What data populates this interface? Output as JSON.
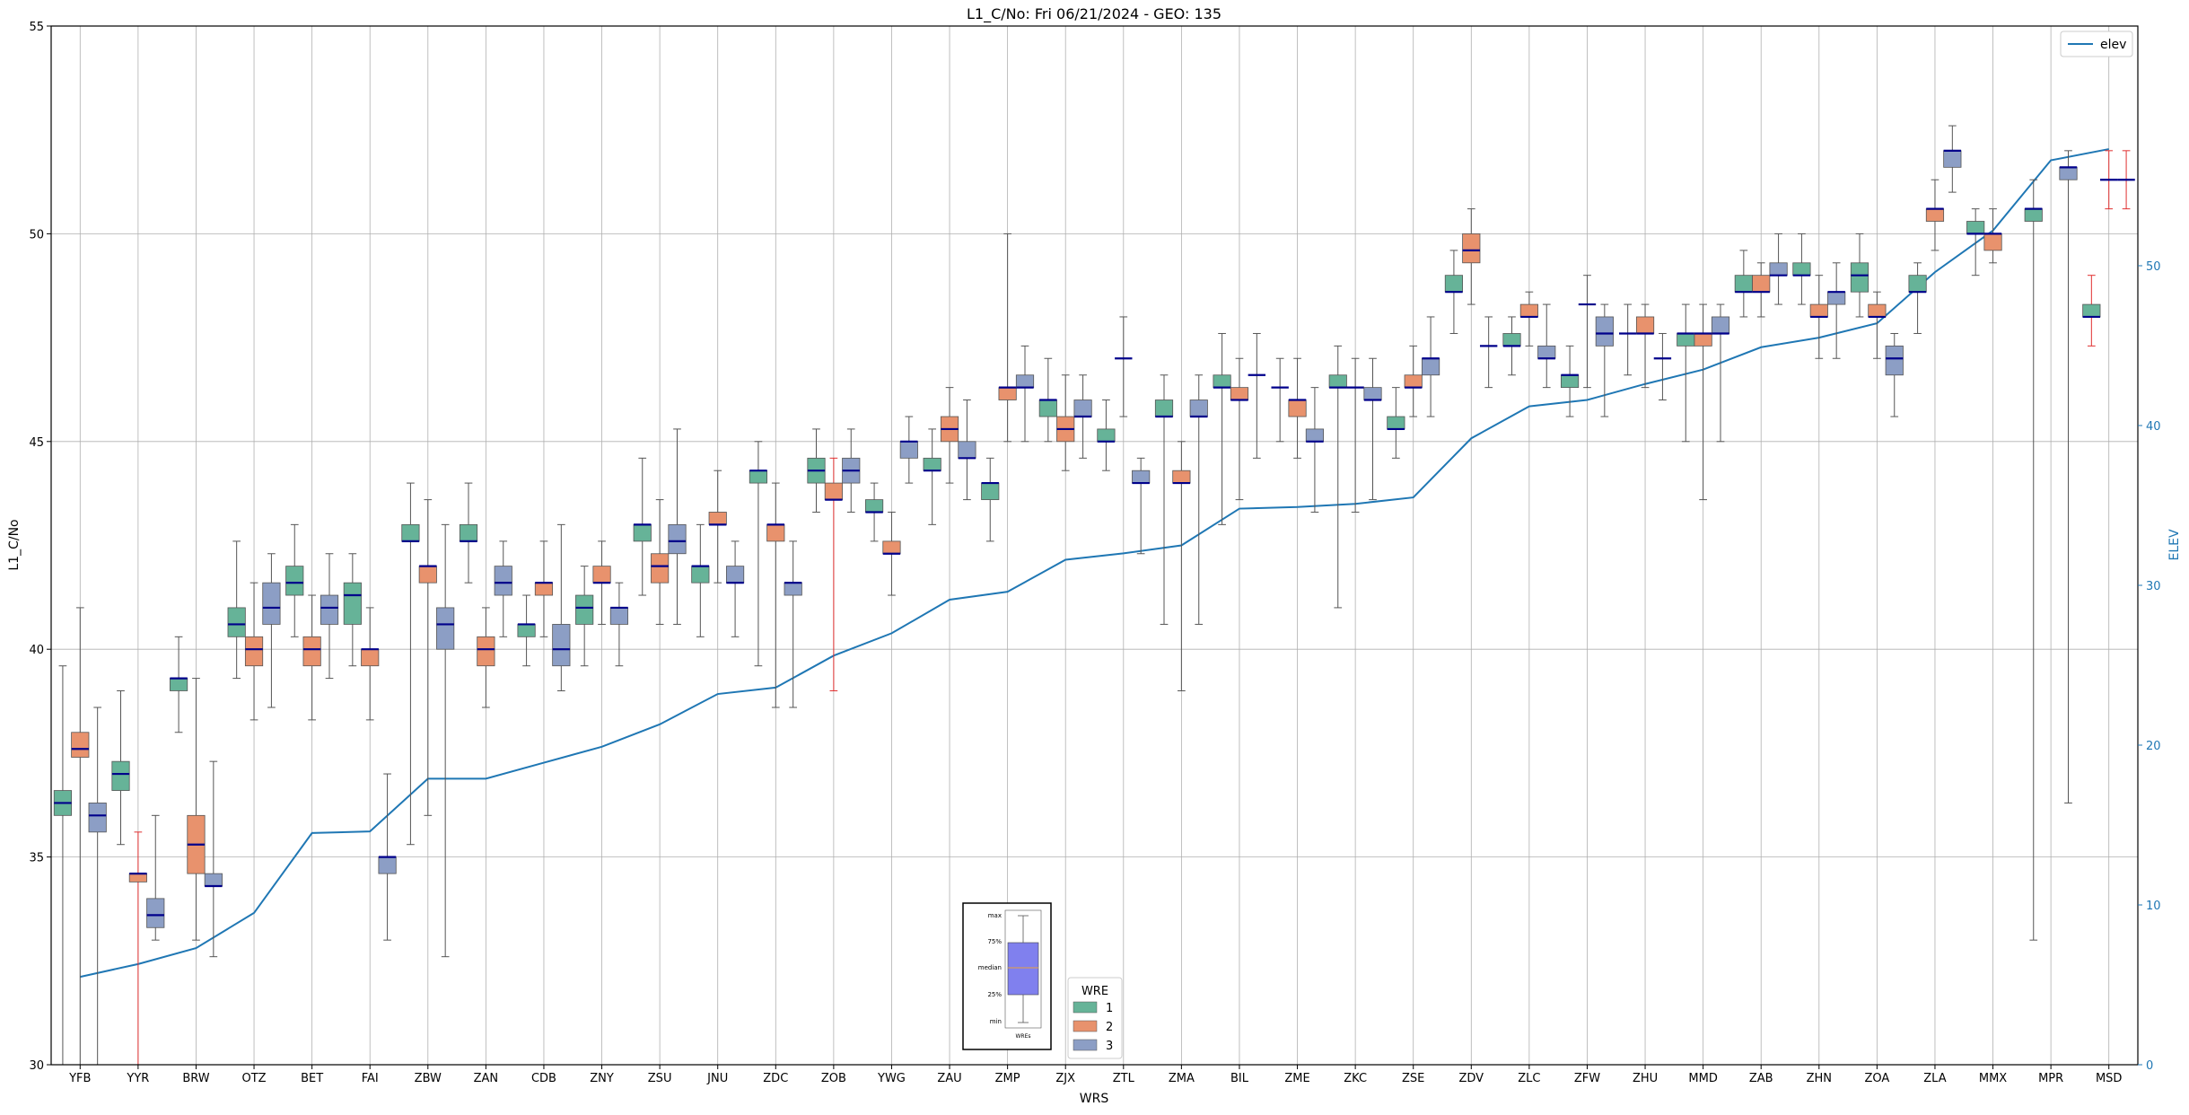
{
  "chart_data": {
    "type": "box",
    "title": "L1_C/No: Fri 06/21/2024 - GEO: 135",
    "xlabel": "WRS",
    "ylabel": "L1_C/No",
    "y2label": "ELEV",
    "ylim": [
      30,
      55
    ],
    "y2lim": [
      0,
      65
    ],
    "yticks": [
      30,
      35,
      40,
      45,
      50,
      55
    ],
    "y2ticks": [
      0,
      10,
      20,
      30,
      40,
      50
    ],
    "grid": true,
    "categories": [
      "YFB",
      "YYR",
      "BRW",
      "OTZ",
      "BET",
      "FAI",
      "ZBW",
      "ZAN",
      "CDB",
      "ZNY",
      "ZSU",
      "JNU",
      "ZDC",
      "ZOB",
      "YWG",
      "ZAU",
      "ZMP",
      "ZJX",
      "ZTL",
      "ZMA",
      "BIL",
      "ZME",
      "ZKC",
      "ZSE",
      "ZDV",
      "ZLC",
      "ZFW",
      "ZHU",
      "MMD",
      "ZAB",
      "ZHN",
      "ZOA",
      "ZLA",
      "MMX",
      "MPR",
      "MSD"
    ],
    "wre_colors": {
      "1": "#66b398",
      "2": "#e8926d",
      "3": "#8c9ec5"
    },
    "series_legend": {
      "title": "WRE",
      "entries": [
        "1",
        "2",
        "3"
      ],
      "position": "bottom-center"
    },
    "elev_legend": {
      "entries": [
        "elev"
      ],
      "position": "top-right"
    },
    "elev": [
      5.5,
      6.3,
      7.3,
      9.5,
      14.5,
      14.6,
      17.9,
      17.9,
      18.9,
      19.9,
      21.3,
      23.2,
      23.6,
      25.6,
      27.0,
      29.1,
      29.6,
      31.6,
      32.0,
      32.5,
      34.8,
      34.9,
      35.1,
      35.5,
      39.2,
      41.2,
      41.6,
      42.6,
      43.5,
      44.9,
      45.5,
      46.4,
      49.6,
      52.2,
      56.6,
      57.3
    ],
    "boxes": [
      {
        "station": "YFB",
        "wre": 1,
        "min": 30.0,
        "q1": 36.0,
        "median": 36.3,
        "q3": 36.6,
        "max": 39.6
      },
      {
        "station": "YFB",
        "wre": 2,
        "min": 30.0,
        "q1": 37.4,
        "median": 37.6,
        "q3": 38.0,
        "max": 41.0
      },
      {
        "station": "YFB",
        "wre": 3,
        "min": 30.0,
        "q1": 35.6,
        "median": 36.0,
        "q3": 36.3,
        "max": 38.6
      },
      {
        "station": "YYR",
        "wre": 1,
        "min": 35.3,
        "q1": 36.6,
        "median": 37.0,
        "q3": 37.3,
        "max": 39.0
      },
      {
        "station": "YYR",
        "wre": 2,
        "min": 30.0,
        "q1": 34.4,
        "median": 34.6,
        "q3": 34.6,
        "max": 35.6
      },
      {
        "station": "YYR",
        "wre": 3,
        "min": 33.0,
        "q1": 33.3,
        "median": 33.6,
        "q3": 34.0,
        "max": 36.0
      },
      {
        "station": "BRW",
        "wre": 1,
        "min": 38.0,
        "q1": 39.0,
        "median": 39.3,
        "q3": 39.3,
        "max": 40.3
      },
      {
        "station": "BRW",
        "wre": 2,
        "min": 33.0,
        "q1": 34.6,
        "median": 35.3,
        "q3": 36.0,
        "max": 39.3
      },
      {
        "station": "BRW",
        "wre": 3,
        "min": 32.6,
        "q1": 34.3,
        "median": 34.3,
        "q3": 34.6,
        "max": 37.3
      },
      {
        "station": "OTZ",
        "wre": 1,
        "min": 39.3,
        "q1": 40.3,
        "median": 40.6,
        "q3": 41.0,
        "max": 42.6
      },
      {
        "station": "OTZ",
        "wre": 2,
        "min": 38.3,
        "q1": 39.6,
        "median": 40.0,
        "q3": 40.3,
        "max": 41.6
      },
      {
        "station": "OTZ",
        "wre": 3,
        "min": 38.6,
        "q1": 40.6,
        "median": 41.0,
        "q3": 41.6,
        "max": 42.3
      },
      {
        "station": "BET",
        "wre": 1,
        "min": 40.3,
        "q1": 41.3,
        "median": 41.6,
        "q3": 42.0,
        "max": 43.0
      },
      {
        "station": "BET",
        "wre": 2,
        "min": 38.3,
        "q1": 39.6,
        "median": 40.0,
        "q3": 40.3,
        "max": 41.3
      },
      {
        "station": "BET",
        "wre": 3,
        "min": 39.3,
        "q1": 40.6,
        "median": 41.0,
        "q3": 41.3,
        "max": 42.3
      },
      {
        "station": "FAI",
        "wre": 1,
        "min": 39.6,
        "q1": 40.6,
        "median": 41.3,
        "q3": 41.6,
        "max": 42.3
      },
      {
        "station": "FAI",
        "wre": 2,
        "min": 38.3,
        "q1": 39.6,
        "median": 40.0,
        "q3": 40.0,
        "max": 41.0
      },
      {
        "station": "FAI",
        "wre": 3,
        "min": 33.0,
        "q1": 34.6,
        "median": 35.0,
        "q3": 35.0,
        "max": 37.0
      },
      {
        "station": "ZBW",
        "wre": 1,
        "min": 35.3,
        "q1": 42.6,
        "median": 42.6,
        "q3": 43.0,
        "max": 44.0
      },
      {
        "station": "ZBW",
        "wre": 2,
        "min": 36.0,
        "q1": 41.6,
        "median": 42.0,
        "q3": 42.0,
        "max": 43.6
      },
      {
        "station": "ZBW",
        "wre": 3,
        "min": 32.6,
        "q1": 40.0,
        "median": 40.6,
        "q3": 41.0,
        "max": 43.0
      },
      {
        "station": "ZAN",
        "wre": 1,
        "min": 41.6,
        "q1": 42.6,
        "median": 42.6,
        "q3": 43.0,
        "max": 44.0
      },
      {
        "station": "ZAN",
        "wre": 2,
        "min": 38.6,
        "q1": 39.6,
        "median": 40.0,
        "q3": 40.3,
        "max": 41.0
      },
      {
        "station": "ZAN",
        "wre": 3,
        "min": 40.3,
        "q1": 41.3,
        "median": 41.6,
        "q3": 42.0,
        "max": 42.6
      },
      {
        "station": "CDB",
        "wre": 1,
        "min": 39.6,
        "q1": 40.3,
        "median": 40.6,
        "q3": 40.6,
        "max": 41.3
      },
      {
        "station": "CDB",
        "wre": 2,
        "min": 40.3,
        "q1": 41.3,
        "median": 41.6,
        "q3": 41.6,
        "max": 42.6
      },
      {
        "station": "CDB",
        "wre": 3,
        "min": 39.0,
        "q1": 39.6,
        "median": 40.0,
        "q3": 40.6,
        "max": 43.0
      },
      {
        "station": "ZNY",
        "wre": 1,
        "min": 39.6,
        "q1": 40.6,
        "median": 41.0,
        "q3": 41.3,
        "max": 42.0
      },
      {
        "station": "ZNY",
        "wre": 2,
        "min": 40.6,
        "q1": 41.6,
        "median": 41.6,
        "q3": 42.0,
        "max": 42.6
      },
      {
        "station": "ZNY",
        "wre": 3,
        "min": 39.6,
        "q1": 40.6,
        "median": 41.0,
        "q3": 41.0,
        "max": 41.6
      },
      {
        "station": "ZSU",
        "wre": 1,
        "min": 41.3,
        "q1": 42.6,
        "median": 43.0,
        "q3": 43.0,
        "max": 44.6
      },
      {
        "station": "ZSU",
        "wre": 2,
        "min": 40.6,
        "q1": 41.6,
        "median": 42.0,
        "q3": 42.3,
        "max": 43.6
      },
      {
        "station": "ZSU",
        "wre": 3,
        "min": 40.6,
        "q1": 42.3,
        "median": 42.6,
        "q3": 43.0,
        "max": 45.3
      },
      {
        "station": "JNU",
        "wre": 1,
        "min": 40.3,
        "q1": 41.6,
        "median": 42.0,
        "q3": 42.0,
        "max": 43.0
      },
      {
        "station": "JNU",
        "wre": 2,
        "min": 41.6,
        "q1": 43.0,
        "median": 43.0,
        "q3": 43.3,
        "max": 44.3
      },
      {
        "station": "JNU",
        "wre": 3,
        "min": 40.3,
        "q1": 41.6,
        "median": 41.6,
        "q3": 42.0,
        "max": 42.6
      },
      {
        "station": "ZDC",
        "wre": 1,
        "min": 39.6,
        "q1": 44.0,
        "median": 44.3,
        "q3": 44.3,
        "max": 45.0
      },
      {
        "station": "ZDC",
        "wre": 2,
        "min": 38.6,
        "q1": 42.6,
        "median": 43.0,
        "q3": 43.0,
        "max": 44.0
      },
      {
        "station": "ZDC",
        "wre": 3,
        "min": 38.6,
        "q1": 41.3,
        "median": 41.6,
        "q3": 41.6,
        "max": 42.6
      },
      {
        "station": "ZOB",
        "wre": 1,
        "min": 43.3,
        "q1": 44.0,
        "median": 44.3,
        "q3": 44.6,
        "max": 45.3
      },
      {
        "station": "ZOB",
        "wre": 2,
        "min": 39.0,
        "q1": 43.6,
        "median": 43.6,
        "q3": 44.0,
        "max": 44.6
      },
      {
        "station": "ZOB",
        "wre": 3,
        "min": 43.3,
        "q1": 44.0,
        "median": 44.3,
        "q3": 44.6,
        "max": 45.3
      },
      {
        "station": "YWG",
        "wre": 1,
        "min": 42.6,
        "q1": 43.3,
        "median": 43.3,
        "q3": 43.6,
        "max": 44.0
      },
      {
        "station": "YWG",
        "wre": 2,
        "min": 41.3,
        "q1": 42.3,
        "median": 42.3,
        "q3": 42.6,
        "max": 43.3
      },
      {
        "station": "YWG",
        "wre": 3,
        "min": 44.0,
        "q1": 44.6,
        "median": 45.0,
        "q3": 45.0,
        "max": 45.6
      },
      {
        "station": "ZAU",
        "wre": 1,
        "min": 43.0,
        "q1": 44.3,
        "median": 44.3,
        "q3": 44.6,
        "max": 45.3
      },
      {
        "station": "ZAU",
        "wre": 2,
        "min": 44.0,
        "q1": 45.0,
        "median": 45.3,
        "q3": 45.6,
        "max": 46.3
      },
      {
        "station": "ZAU",
        "wre": 3,
        "min": 43.6,
        "q1": 44.6,
        "median": 44.6,
        "q3": 45.0,
        "max": 46.0
      },
      {
        "station": "ZMP",
        "wre": 1,
        "min": 42.6,
        "q1": 43.6,
        "median": 44.0,
        "q3": 44.0,
        "max": 44.6
      },
      {
        "station": "ZMP",
        "wre": 2,
        "min": 45.0,
        "q1": 46.0,
        "median": 46.3,
        "q3": 46.3,
        "max": 50.0
      },
      {
        "station": "ZMP",
        "wre": 3,
        "min": 45.0,
        "q1": 46.3,
        "median": 46.3,
        "q3": 46.6,
        "max": 47.3
      },
      {
        "station": "ZJX",
        "wre": 1,
        "min": 45.0,
        "q1": 45.6,
        "median": 46.0,
        "q3": 46.0,
        "max": 47.0
      },
      {
        "station": "ZJX",
        "wre": 2,
        "min": 44.3,
        "q1": 45.0,
        "median": 45.3,
        "q3": 45.6,
        "max": 46.6
      },
      {
        "station": "ZJX",
        "wre": 3,
        "min": 44.6,
        "q1": 45.6,
        "median": 45.6,
        "q3": 46.0,
        "max": 46.6
      },
      {
        "station": "ZTL",
        "wre": 1,
        "min": 44.3,
        "q1": 45.0,
        "median": 45.0,
        "q3": 45.3,
        "max": 46.0
      },
      {
        "station": "ZTL",
        "wre": 2,
        "min": 45.6,
        "q1": 47.0,
        "median": 47.0,
        "q3": 47.0,
        "max": 48.0
      },
      {
        "station": "ZTL",
        "wre": 3,
        "min": 42.3,
        "q1": 44.0,
        "median": 44.0,
        "q3": 44.3,
        "max": 44.6
      },
      {
        "station": "ZMA",
        "wre": 1,
        "min": 40.6,
        "q1": 45.6,
        "median": 45.6,
        "q3": 46.0,
        "max": 46.6
      },
      {
        "station": "ZMA",
        "wre": 2,
        "min": 39.0,
        "q1": 44.0,
        "median": 44.0,
        "q3": 44.3,
        "max": 45.0
      },
      {
        "station": "ZMA",
        "wre": 3,
        "min": 40.6,
        "q1": 45.6,
        "median": 45.6,
        "q3": 46.0,
        "max": 46.6
      },
      {
        "station": "BIL",
        "wre": 1,
        "min": 43.0,
        "q1": 46.3,
        "median": 46.3,
        "q3": 46.6,
        "max": 47.6
      },
      {
        "station": "BIL",
        "wre": 2,
        "min": 43.6,
        "q1": 46.0,
        "median": 46.0,
        "q3": 46.3,
        "max": 47.0
      },
      {
        "station": "BIL",
        "wre": 3,
        "min": 44.6,
        "q1": 46.6,
        "median": 46.6,
        "q3": 46.6,
        "max": 47.6
      },
      {
        "station": "ZME",
        "wre": 1,
        "min": 45.0,
        "q1": 46.3,
        "median": 46.3,
        "q3": 46.3,
        "max": 47.0
      },
      {
        "station": "ZME",
        "wre": 2,
        "min": 44.6,
        "q1": 45.6,
        "median": 46.0,
        "q3": 46.0,
        "max": 47.0
      },
      {
        "station": "ZME",
        "wre": 3,
        "min": 43.3,
        "q1": 45.0,
        "median": 45.0,
        "q3": 45.3,
        "max": 46.3
      },
      {
        "station": "ZKC",
        "wre": 1,
        "min": 41.0,
        "q1": 46.3,
        "median": 46.3,
        "q3": 46.6,
        "max": 47.3
      },
      {
        "station": "ZKC",
        "wre": 2,
        "min": 43.3,
        "q1": 46.3,
        "median": 46.3,
        "q3": 46.3,
        "max": 47.0
      },
      {
        "station": "ZKC",
        "wre": 3,
        "min": 43.6,
        "q1": 46.0,
        "median": 46.0,
        "q3": 46.3,
        "max": 47.0
      },
      {
        "station": "ZSE",
        "wre": 1,
        "min": 44.6,
        "q1": 45.3,
        "median": 45.3,
        "q3": 45.6,
        "max": 46.3
      },
      {
        "station": "ZSE",
        "wre": 2,
        "min": 45.6,
        "q1": 46.3,
        "median": 46.3,
        "q3": 46.6,
        "max": 47.3
      },
      {
        "station": "ZSE",
        "wre": 3,
        "min": 45.6,
        "q1": 46.6,
        "median": 47.0,
        "q3": 47.0,
        "max": 48.0
      },
      {
        "station": "ZDV",
        "wre": 1,
        "min": 47.6,
        "q1": 48.6,
        "median": 48.6,
        "q3": 49.0,
        "max": 49.6
      },
      {
        "station": "ZDV",
        "wre": 2,
        "min": 48.3,
        "q1": 49.3,
        "median": 49.6,
        "q3": 50.0,
        "max": 50.6
      },
      {
        "station": "ZDV",
        "wre": 3,
        "min": 46.3,
        "q1": 47.3,
        "median": 47.3,
        "q3": 47.3,
        "max": 48.0
      },
      {
        "station": "ZLC",
        "wre": 1,
        "min": 46.6,
        "q1": 47.3,
        "median": 47.3,
        "q3": 47.6,
        "max": 48.0
      },
      {
        "station": "ZLC",
        "wre": 2,
        "min": 47.3,
        "q1": 48.0,
        "median": 48.0,
        "q3": 48.3,
        "max": 48.6
      },
      {
        "station": "ZLC",
        "wre": 3,
        "min": 46.3,
        "q1": 47.0,
        "median": 47.0,
        "q3": 47.3,
        "max": 48.3
      },
      {
        "station": "ZFW",
        "wre": 1,
        "min": 45.6,
        "q1": 46.3,
        "median": 46.6,
        "q3": 46.6,
        "max": 47.3
      },
      {
        "station": "ZFW",
        "wre": 2,
        "min": 46.3,
        "q1": 48.3,
        "median": 48.3,
        "q3": 48.3,
        "max": 49.0
      },
      {
        "station": "ZFW",
        "wre": 3,
        "min": 45.6,
        "q1": 47.3,
        "median": 47.6,
        "q3": 48.0,
        "max": 48.3
      },
      {
        "station": "ZHU",
        "wre": 1,
        "min": 46.6,
        "q1": 47.6,
        "median": 47.6,
        "q3": 47.6,
        "max": 48.3
      },
      {
        "station": "ZHU",
        "wre": 2,
        "min": 46.3,
        "q1": 47.6,
        "median": 47.6,
        "q3": 48.0,
        "max": 48.3
      },
      {
        "station": "ZHU",
        "wre": 3,
        "min": 46.0,
        "q1": 47.0,
        "median": 47.0,
        "q3": 47.0,
        "max": 47.6
      },
      {
        "station": "MMD",
        "wre": 1,
        "min": 45.0,
        "q1": 47.3,
        "median": 47.6,
        "q3": 47.6,
        "max": 48.3
      },
      {
        "station": "MMD",
        "wre": 2,
        "min": 43.6,
        "q1": 47.3,
        "median": 47.6,
        "q3": 47.6,
        "max": 48.3
      },
      {
        "station": "MMD",
        "wre": 3,
        "min": 45.0,
        "q1": 47.6,
        "median": 47.6,
        "q3": 48.0,
        "max": 48.3
      },
      {
        "station": "ZAB",
        "wre": 1,
        "min": 48.0,
        "q1": 48.6,
        "median": 48.6,
        "q3": 49.0,
        "max": 49.6
      },
      {
        "station": "ZAB",
        "wre": 2,
        "min": 48.0,
        "q1": 48.6,
        "median": 48.6,
        "q3": 49.0,
        "max": 49.3
      },
      {
        "station": "ZAB",
        "wre": 3,
        "min": 48.3,
        "q1": 49.0,
        "median": 49.0,
        "q3": 49.3,
        "max": 50.0
      },
      {
        "station": "ZHN",
        "wre": 1,
        "min": 48.3,
        "q1": 49.0,
        "median": 49.0,
        "q3": 49.3,
        "max": 50.0
      },
      {
        "station": "ZHN",
        "wre": 2,
        "min": 47.0,
        "q1": 48.0,
        "median": 48.0,
        "q3": 48.3,
        "max": 49.0
      },
      {
        "station": "ZHN",
        "wre": 3,
        "min": 47.0,
        "q1": 48.3,
        "median": 48.6,
        "q3": 48.6,
        "max": 49.3
      },
      {
        "station": "ZOA",
        "wre": 1,
        "min": 48.0,
        "q1": 48.6,
        "median": 49.0,
        "q3": 49.3,
        "max": 50.0
      },
      {
        "station": "ZOA",
        "wre": 2,
        "min": 47.0,
        "q1": 48.0,
        "median": 48.0,
        "q3": 48.3,
        "max": 48.6
      },
      {
        "station": "ZOA",
        "wre": 3,
        "min": 45.6,
        "q1": 46.6,
        "median": 47.0,
        "q3": 47.3,
        "max": 47.6
      },
      {
        "station": "ZLA",
        "wre": 1,
        "min": 47.6,
        "q1": 48.6,
        "median": 48.6,
        "q3": 49.0,
        "max": 49.3
      },
      {
        "station": "ZLA",
        "wre": 2,
        "min": 49.6,
        "q1": 50.3,
        "median": 50.6,
        "q3": 50.6,
        "max": 51.3
      },
      {
        "station": "ZLA",
        "wre": 3,
        "min": 51.0,
        "q1": 51.6,
        "median": 52.0,
        "q3": 52.0,
        "max": 52.6
      },
      {
        "station": "MMX",
        "wre": 1,
        "min": 49.0,
        "q1": 50.0,
        "median": 50.0,
        "q3": 50.3,
        "max": 50.6
      },
      {
        "station": "MMX",
        "wre": 2,
        "min": 49.3,
        "q1": 49.6,
        "median": 50.0,
        "q3": 50.0,
        "max": 50.6
      },
      {
        "station": "MPR",
        "wre": 1,
        "min": 33.0,
        "q1": 50.3,
        "median": 50.6,
        "q3": 50.6,
        "max": 51.3
      },
      {
        "station": "MPR",
        "wre": 3,
        "min": 36.3,
        "q1": 51.3,
        "median": 51.6,
        "q3": 51.6,
        "max": 52.0
      },
      {
        "station": "MSD",
        "wre": 1,
        "min": 47.3,
        "q1": 48.0,
        "median": 48.0,
        "q3": 48.3,
        "max": 49.0
      },
      {
        "station": "MSD",
        "wre": 2,
        "min": 50.6,
        "q1": 51.3,
        "median": 51.3,
        "q3": 51.3,
        "max": 52.0
      },
      {
        "station": "MSD",
        "wre": 3,
        "min": 50.6,
        "q1": 51.3,
        "median": 51.3,
        "q3": 51.3,
        "max": 52.0
      }
    ],
    "key_box": {
      "labels": [
        "max",
        "75%",
        "median",
        "25%",
        "min"
      ],
      "xlabel": "WREs"
    }
  }
}
